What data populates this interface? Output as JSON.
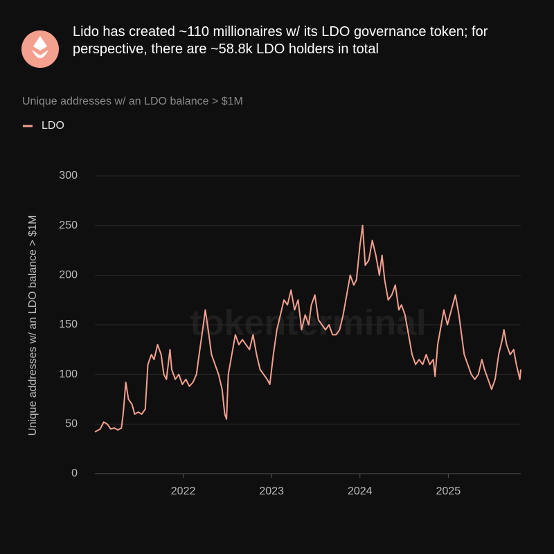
{
  "chart_data": {
    "type": "line",
    "title": "Lido has created ~110 millionaires w/ its LDO governance token; for perspective, there are ~58.8k LDO holders in total",
    "subtitle": "Unique addresses w/ an LDO balance > $1M",
    "y_label": "Unique addresses w/ an LDO balance > $1M",
    "watermark": "tokenterminal",
    "legend": "top-left",
    "grid": true,
    "xlim": [
      2021.0,
      2025.82
    ],
    "xticks": [
      2022,
      2023,
      2024,
      2025
    ],
    "ylim": [
      0,
      300
    ],
    "yticks": [
      0,
      50,
      100,
      150,
      200,
      250,
      300
    ],
    "x": [
      2021.0,
      2021.06,
      2021.1,
      2021.14,
      2021.18,
      2021.22,
      2021.26,
      2021.3,
      2021.32,
      2021.35,
      2021.38,
      2021.42,
      2021.45,
      2021.49,
      2021.53,
      2021.57,
      2021.6,
      2021.64,
      2021.67,
      2021.71,
      2021.75,
      2021.78,
      2021.81,
      2021.85,
      2021.87,
      2021.91,
      2021.95,
      2021.99,
      2022.03,
      2022.07,
      2022.11,
      2022.15,
      2022.18,
      2022.22,
      2022.25,
      2022.29,
      2022.32,
      2022.36,
      2022.4,
      2022.44,
      2022.47,
      2022.49,
      2022.51,
      2022.55,
      2022.59,
      2022.63,
      2022.67,
      2022.71,
      2022.75,
      2022.79,
      2022.83,
      2022.87,
      2022.91,
      2022.95,
      2022.98,
      2023.02,
      2023.06,
      2023.1,
      2023.14,
      2023.18,
      2023.22,
      2023.26,
      2023.3,
      2023.34,
      2023.38,
      2023.42,
      2023.45,
      2023.49,
      2023.53,
      2023.57,
      2023.61,
      2023.65,
      2023.69,
      2023.73,
      2023.77,
      2023.81,
      2023.85,
      2023.89,
      2023.93,
      2023.96,
      2024.0,
      2024.03,
      2024.06,
      2024.1,
      2024.14,
      2024.18,
      2024.22,
      2024.25,
      2024.28,
      2024.32,
      2024.36,
      2024.4,
      2024.44,
      2024.47,
      2024.51,
      2024.55,
      2024.59,
      2024.63,
      2024.67,
      2024.71,
      2024.75,
      2024.79,
      2024.83,
      2024.85,
      2024.88,
      2024.92,
      2024.95,
      2024.99,
      2025.02,
      2025.05,
      2025.08,
      2025.12,
      2025.15,
      2025.18,
      2025.22,
      2025.26,
      2025.3,
      2025.34,
      2025.38,
      2025.41,
      2025.45,
      2025.49,
      2025.53,
      2025.57,
      2025.61,
      2025.63,
      2025.66,
      2025.7,
      2025.74,
      2025.77,
      2025.81,
      2025.82
    ],
    "series": [
      {
        "name": "LDO",
        "color": "#f4a08f",
        "values": [
          42,
          45,
          52,
          50,
          45,
          46,
          44,
          46,
          60,
          92,
          75,
          70,
          60,
          62,
          60,
          65,
          110,
          120,
          115,
          130,
          120,
          100,
          95,
          125,
          105,
          95,
          100,
          90,
          95,
          88,
          92,
          100,
          120,
          145,
          165,
          140,
          120,
          110,
          100,
          85,
          60,
          55,
          100,
          120,
          140,
          130,
          135,
          130,
          125,
          140,
          120,
          105,
          100,
          95,
          90,
          120,
          145,
          160,
          175,
          170,
          185,
          165,
          175,
          145,
          160,
          150,
          170,
          180,
          155,
          150,
          145,
          150,
          140,
          140,
          145,
          160,
          180,
          200,
          190,
          195,
          230,
          250,
          210,
          215,
          235,
          220,
          200,
          220,
          195,
          175,
          180,
          190,
          165,
          170,
          160,
          140,
          120,
          110,
          115,
          110,
          120,
          110,
          115,
          98,
          130,
          150,
          165,
          150,
          160,
          170,
          180,
          160,
          140,
          120,
          110,
          100,
          95,
          100,
          115,
          105,
          95,
          85,
          95,
          120,
          135,
          145,
          130,
          120,
          125,
          110,
          95,
          105
        ]
      }
    ]
  }
}
